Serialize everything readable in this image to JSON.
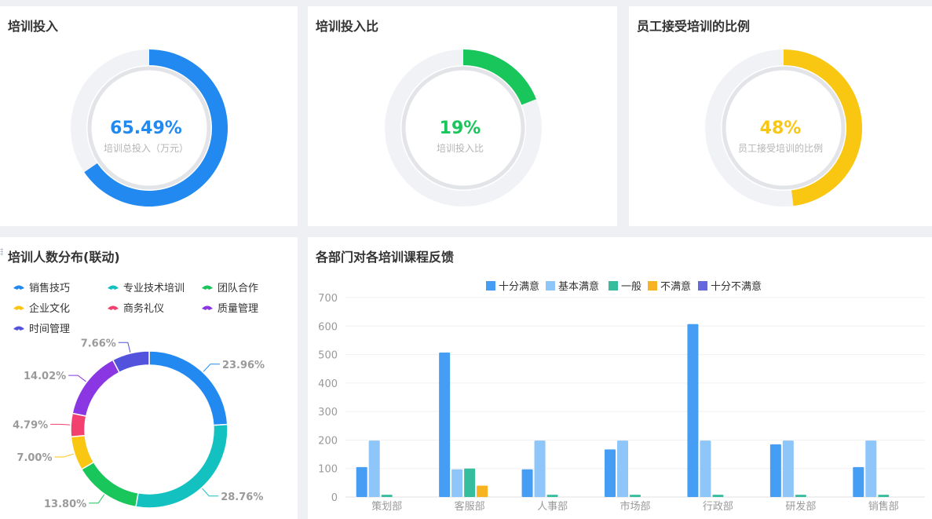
{
  "gauges": [
    {
      "title": "培训投入",
      "value_text": "65.49%",
      "sub_label": "培训总投入（万元）",
      "value": 0.6549,
      "color": "#2189f0"
    },
    {
      "title": "培训投入比",
      "value_text": "19%",
      "sub_label": "培训投入比",
      "value": 0.19,
      "color": "#19c65b"
    },
    {
      "title": "员工接受培训的比例",
      "value_text": "48%",
      "sub_label": "员工接受培训的比例",
      "value": 0.48,
      "color": "#f9c712"
    }
  ],
  "donut": {
    "title": "培训人数分布(联动)"
  },
  "bars": {
    "title": "各部门对各培训课程反馈"
  },
  "chart_data": [
    {
      "type": "pie",
      "title": "培训人数分布(联动)",
      "categories": [
        "销售技巧",
        "专业技术培训",
        "团队合作",
        "企业文化",
        "商务礼仪",
        "质量管理",
        "时间管理"
      ],
      "values": [
        23.96,
        28.76,
        13.8,
        7.0,
        4.79,
        14.02,
        7.66
      ],
      "labels": [
        "23.96%",
        "28.76%",
        "13.80%",
        "7.00%",
        "4.79%",
        "14.02%",
        "7.66%"
      ],
      "colors": [
        "#2189f0",
        "#13c1c0",
        "#19c65b",
        "#f9c712",
        "#f2416e",
        "#8a37e3",
        "#5252dc"
      ],
      "legend": "top-left"
    },
    {
      "type": "bar",
      "title": "各部门对各培训课程反馈",
      "categories": [
        "策划部",
        "客服部",
        "人事部",
        "市场部",
        "行政部",
        "研发部",
        "销售部"
      ],
      "series": [
        {
          "name": "十分满意",
          "color": "#459ef3",
          "values": [
            105,
            507,
            97,
            167,
            607,
            185,
            105
          ]
        },
        {
          "name": "基本满意",
          "color": "#8fc6fa",
          "values": [
            198,
            97,
            198,
            198,
            198,
            198,
            198
          ]
        },
        {
          "name": "一般",
          "color": "#35bd9d",
          "values": [
            8,
            100,
            8,
            8,
            8,
            8,
            8
          ]
        },
        {
          "name": "不满意",
          "color": "#f7b322",
          "values": [
            0,
            40,
            0,
            0,
            0,
            0,
            0
          ]
        },
        {
          "name": "十分不满意",
          "color": "#6668de",
          "values": [
            0,
            0,
            0,
            0,
            0,
            0,
            0
          ]
        }
      ],
      "ylim": [
        0,
        700
      ],
      "yticks": [
        0,
        100,
        200,
        300,
        400,
        500,
        600,
        700
      ],
      "legend": "top-center",
      "grid": true
    }
  ]
}
